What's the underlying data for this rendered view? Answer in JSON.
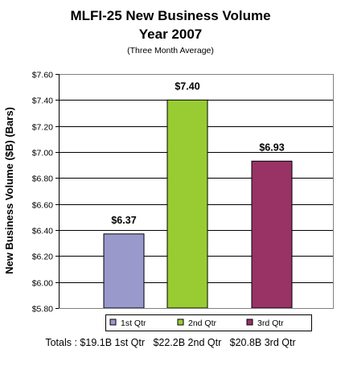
{
  "chart_data": {
    "type": "bar",
    "title_line1": "MLFI-25 New Business Volume",
    "title_line2": "Year 2007",
    "subtitle": "(Three Month Average)",
    "ylabel": "New Business Volume ($B) (Bars)",
    "xlabel": "",
    "categories": [
      "1st Qtr",
      "2nd Qtr",
      "3rd Qtr"
    ],
    "values": [
      6.37,
      7.4,
      6.93
    ],
    "data_labels": [
      "$6.37",
      "$7.40",
      "$6.93"
    ],
    "colors": [
      "#9999cc",
      "#99cc33",
      "#993366"
    ],
    "ylim": [
      5.8,
      7.6
    ],
    "yticks": [
      5.8,
      6.0,
      6.2,
      6.4,
      6.6,
      6.8,
      7.0,
      7.2,
      7.4,
      7.6
    ],
    "ytick_labels": [
      "$5.80",
      "$6.00",
      "$6.20",
      "$6.40",
      "$6.60",
      "$6.80",
      "$7.00",
      "$7.20",
      "$7.40",
      "$7.60"
    ],
    "grid": "horizontal",
    "legend_position": "bottom",
    "legend": [
      "1st Qtr",
      "2nd Qtr",
      "3rd Qtr"
    ]
  },
  "footer": {
    "totals": "Totals : $19.1B 1st Qtr   $22.2B 2nd Qtr   $20.8B 3rd Qtr"
  }
}
